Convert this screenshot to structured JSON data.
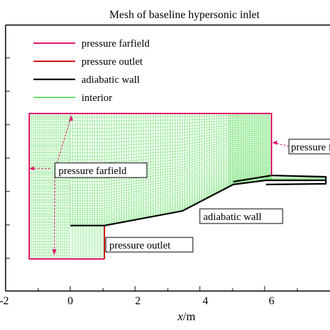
{
  "title": "Mesh of baseline hypersonic inlet",
  "x_axis": {
    "label_var": "x",
    "label_unit": "/m",
    "ticks": [
      "-2",
      "0",
      "2",
      "4",
      "6"
    ]
  },
  "legend": [
    {
      "label": "pressure farfield",
      "color": "#e0186b"
    },
    {
      "label": "pressure outlet",
      "color": "#d01010"
    },
    {
      "label": "adiabatic wall",
      "color": "#000000"
    },
    {
      "label": "interior",
      "color": "#34d434"
    }
  ],
  "callouts": {
    "farfield_left": "pressure farfield",
    "farfield_right": "pressure f",
    "outlet": "pressure outlet",
    "wall": "adiabatic wall"
  },
  "colors": {
    "mesh": "#34d434",
    "farfield": "#e0186b",
    "outlet": "#d01010",
    "wall": "#000000",
    "arrow": "#e0186b"
  }
}
